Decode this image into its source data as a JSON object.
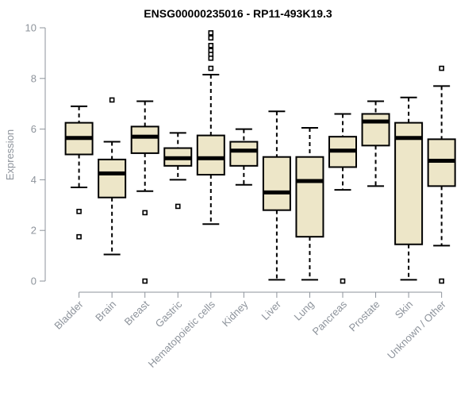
{
  "title": "ENSG00000235016 - RP11-493K19.3",
  "colors": {
    "box_fill": "#ede6c8",
    "box_border": "#000000",
    "median": "#000000",
    "whisker": "#000000",
    "outlier_stroke": "#000000",
    "outlier_fill": "#ffffff",
    "axis": "#8d939b",
    "tick_text": "#8d939b",
    "title_text": "#000000",
    "background": "#ffffff"
  },
  "chart_data": {
    "type": "boxplot",
    "title": "ENSG00000235016 - RP11-493K19.3",
    "xlabel": "",
    "ylabel": "Expression",
    "ylim": [
      0,
      10
    ],
    "yticks": [
      0,
      2,
      4,
      6,
      8,
      10
    ],
    "grid": "off",
    "legend": "none",
    "categories": [
      "Bladder",
      "Brain",
      "Breast",
      "Gastric",
      "Hematopoietic cells",
      "Kidney",
      "Liver",
      "Lung",
      "Pancreas",
      "Prostate",
      "Skin",
      "Unknown / Other"
    ],
    "series": [
      {
        "name": "Bladder",
        "whisker_low": 3.7,
        "q1": 5.0,
        "median": 5.65,
        "q3": 6.25,
        "whisker_high": 6.9,
        "outliers": [
          2.75,
          1.75
        ]
      },
      {
        "name": "Brain",
        "whisker_low": 1.05,
        "q1": 3.3,
        "median": 4.25,
        "q3": 4.8,
        "whisker_high": 5.5,
        "outliers": [
          7.15
        ]
      },
      {
        "name": "Breast",
        "whisker_low": 3.55,
        "q1": 5.05,
        "median": 5.7,
        "q3": 6.1,
        "whisker_high": 7.1,
        "outliers": [
          2.7,
          0
        ]
      },
      {
        "name": "Gastric",
        "whisker_low": 4.0,
        "q1": 4.55,
        "median": 4.85,
        "q3": 5.25,
        "whisker_high": 5.85,
        "outliers": [
          2.95
        ]
      },
      {
        "name": "Hematopoietic cells",
        "whisker_low": 2.25,
        "q1": 4.2,
        "median": 4.85,
        "q3": 5.75,
        "whisker_high": 8.15,
        "outliers": [
          9.8,
          9.6,
          9.3,
          9.1,
          8.95,
          8.8,
          8.4
        ]
      },
      {
        "name": "Kidney",
        "whisker_low": 3.8,
        "q1": 4.55,
        "median": 5.15,
        "q3": 5.5,
        "whisker_high": 6.0,
        "outliers": []
      },
      {
        "name": "Liver",
        "whisker_low": 0.05,
        "q1": 2.8,
        "median": 3.5,
        "q3": 4.9,
        "whisker_high": 6.7,
        "outliers": []
      },
      {
        "name": "Lung",
        "whisker_low": 0.05,
        "q1": 1.75,
        "median": 3.95,
        "q3": 4.9,
        "whisker_high": 6.05,
        "outliers": []
      },
      {
        "name": "Pancreas",
        "whisker_low": 3.6,
        "q1": 4.5,
        "median": 5.15,
        "q3": 5.7,
        "whisker_high": 6.6,
        "outliers": [
          0
        ]
      },
      {
        "name": "Prostate",
        "whisker_low": 3.75,
        "q1": 5.35,
        "median": 6.3,
        "q3": 6.6,
        "whisker_high": 7.1,
        "outliers": []
      },
      {
        "name": "Skin",
        "whisker_low": 0.05,
        "q1": 1.45,
        "median": 5.65,
        "q3": 6.25,
        "whisker_high": 7.25,
        "outliers": []
      },
      {
        "name": "Unknown / Other",
        "whisker_low": 1.4,
        "q1": 3.75,
        "median": 4.75,
        "q3": 5.6,
        "whisker_high": 7.7,
        "outliers": [
          8.4,
          0
        ]
      }
    ]
  }
}
